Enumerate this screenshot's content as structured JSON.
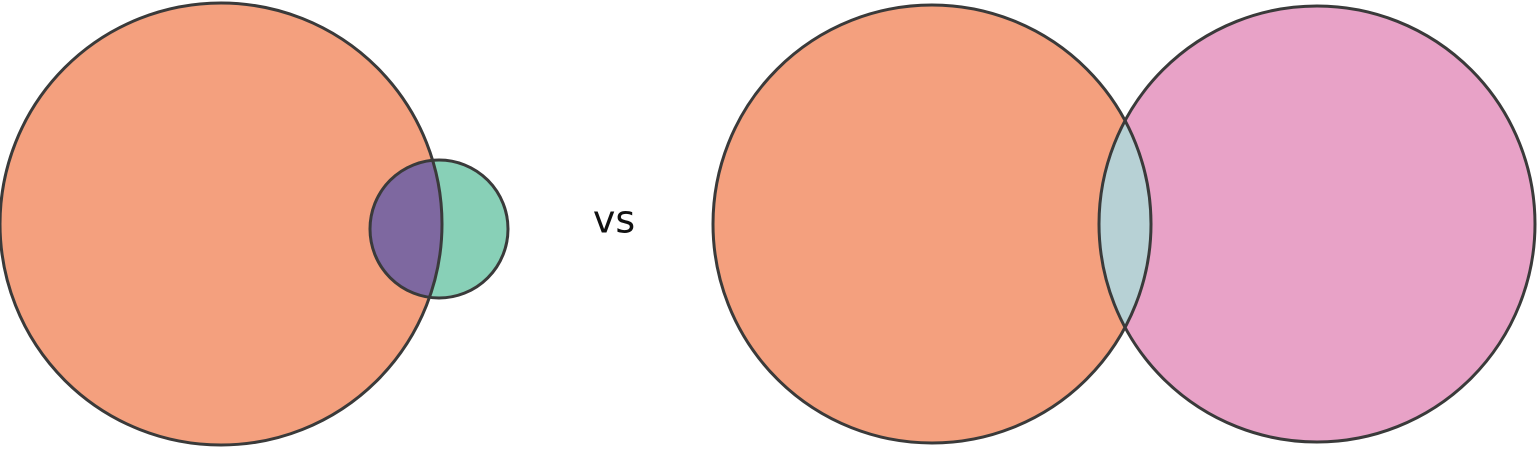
{
  "separator": {
    "label": "vs"
  },
  "colors": {
    "outline": "#3a3a3a",
    "background": "#ffffff"
  },
  "diagrams": [
    {
      "name": "left-venn",
      "sets": [
        {
          "name": "large-set",
          "fill": "#f4a07e"
        },
        {
          "name": "small-set",
          "fill": "#88d0b7"
        }
      ],
      "overlap_fill": "#7e68a0"
    },
    {
      "name": "right-venn",
      "sets": [
        {
          "name": "left-set",
          "fill": "#f4a07e"
        },
        {
          "name": "right-set",
          "fill": "#e8a2c7"
        }
      ],
      "overlap_fill": "#b7d1d5"
    }
  ]
}
